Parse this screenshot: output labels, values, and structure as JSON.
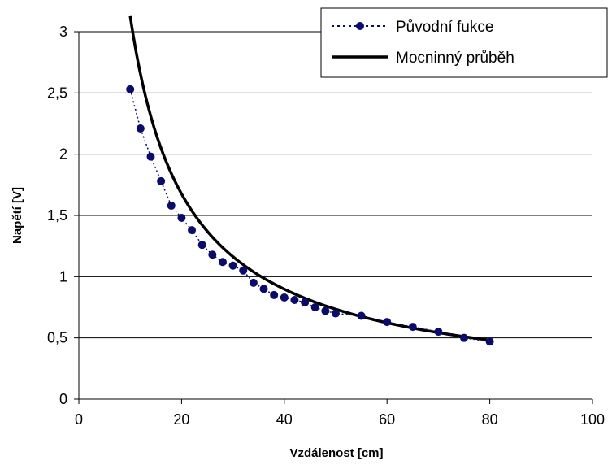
{
  "chart_data": {
    "type": "scatter",
    "title": "",
    "xlabel": "Vzdálenost [cm]",
    "ylabel": "Napětí [V]",
    "xlim": [
      0,
      100
    ],
    "ylim": [
      0,
      3
    ],
    "x_ticks": [
      "0",
      "20",
      "40",
      "60",
      "80",
      "100"
    ],
    "y_ticks": [
      "0",
      "0,5",
      "1",
      "1,5",
      "2",
      "2,5",
      "3"
    ],
    "grid": "horizontal",
    "legend_position": "top-right",
    "series": [
      {
        "name": "Původní fukce",
        "style": "dotted line with markers",
        "color": "#0b0b6b",
        "x": [
          10,
          12,
          14,
          16,
          18,
          20,
          22,
          24,
          26,
          28,
          30,
          32,
          34,
          36,
          38,
          40,
          42,
          44,
          46,
          48,
          50,
          55,
          60,
          65,
          70,
          75,
          80
        ],
        "y": [
          2.53,
          2.21,
          1.98,
          1.78,
          1.58,
          1.48,
          1.38,
          1.26,
          1.18,
          1.12,
          1.09,
          1.05,
          0.95,
          0.9,
          0.85,
          0.83,
          0.81,
          0.79,
          0.75,
          0.72,
          0.7,
          0.68,
          0.63,
          0.59,
          0.55,
          0.5,
          0.47
        ]
      },
      {
        "name": "Mocninný průběh",
        "style": "solid line",
        "color": "#000000",
        "function": "power",
        "coefficient": 24.84,
        "exponent": -0.9
      }
    ]
  }
}
